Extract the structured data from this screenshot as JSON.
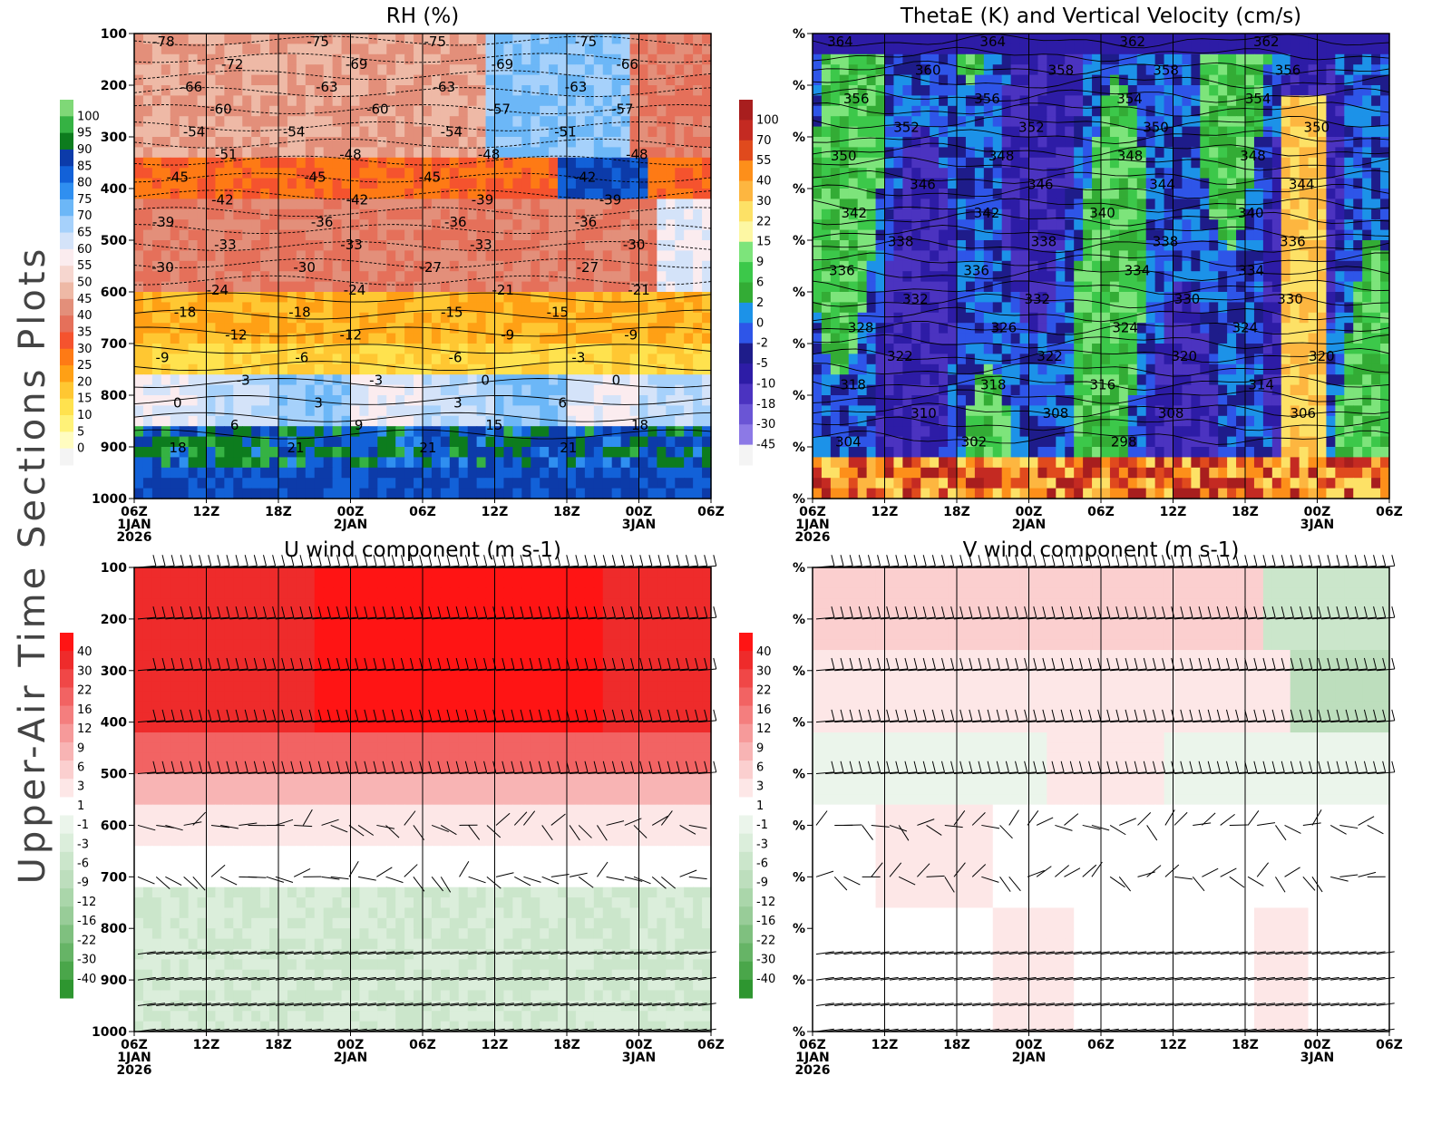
{
  "figure_title": "Upper-Air Time Sections Plots",
  "palettes": {
    "rh": [
      "#f4f4f4",
      "#fffcc0",
      "#fff278",
      "#ffe24e",
      "#ffc732",
      "#ffa015",
      "#fe7a15",
      "#f5532e",
      "#e5705a",
      "#e38f7a",
      "#eeb9a6",
      "#f6d6cf",
      "#fbecef",
      "#d4e3f9",
      "#a6d1fb",
      "#6cb7f7",
      "#2f8ff0",
      "#1261d8",
      "#0c3ba9",
      "#0d7c1e",
      "#35b243",
      "#7fd877"
    ],
    "theta": [
      "#f4f4f4",
      "#8c79e6",
      "#6a55d5",
      "#4b33c0",
      "#2d1ca6",
      "#1e1c8a",
      "#2e55e8",
      "#1c92e8",
      "#33ac35",
      "#3cc84a",
      "#7de47b",
      "#fdf7a3",
      "#fde166",
      "#fdb640",
      "#fd8f1a",
      "#e04a1d",
      "#c42a22",
      "#a81e1e"
    ],
    "uwind": [
      "#2e9630",
      "#4aa64a",
      "#66b466",
      "#7fc07f",
      "#98cc98",
      "#aad6aa",
      "#bddebd",
      "#cbe6cb",
      "#dbeedb",
      "#ebf5eb",
      "#ffffff",
      "#fde7e7",
      "#fbcfcf",
      "#f8b4b4",
      "#f69a9a",
      "#f47e7e",
      "#f26363",
      "#f04747",
      "#ee2b2b",
      "#ff1414"
    ]
  },
  "chart_data": [
    {
      "id": "rh",
      "type": "heatmap",
      "title": "RH (%)",
      "xlabel": "",
      "ylabel": "",
      "y_ticks": [
        "100",
        "200",
        "300",
        "400",
        "500",
        "600",
        "700",
        "800",
        "900",
        "1000"
      ],
      "x_ticks": [
        "06Z",
        "12Z",
        "18Z",
        "00Z",
        "06Z",
        "12Z",
        "18Z",
        "00Z",
        "06Z"
      ],
      "x_date_labels": [
        "1JAN",
        "2JAN",
        "3JAN"
      ],
      "x_year": "2026",
      "ylim": [
        1000,
        100
      ],
      "colorbar": [
        "100",
        "95",
        "90",
        "85",
        "80",
        "75",
        "70",
        "65",
        "60",
        "55",
        "50",
        "45",
        "40",
        "35",
        "30",
        "25",
        "20",
        "15",
        "10",
        "5",
        "0"
      ],
      "contour_labels": [
        "-78",
        "-75",
        "-75",
        "-75",
        "-72",
        "-69",
        "-69",
        "-66",
        "-66",
        "-63",
        "-63",
        "-63",
        "-60",
        "-60",
        "-57",
        "-57",
        "-54",
        "-54",
        "-54",
        "-51",
        "-51",
        "-48",
        "-48",
        "-48",
        "-45",
        "-45",
        "-45",
        "-42",
        "-42",
        "-42",
        "-39",
        "-39",
        "-39",
        "-36",
        "-36",
        "-36",
        "-33",
        "-33",
        "-33",
        "-30",
        "-30",
        "-30",
        "-27",
        "-27",
        "-24",
        "-24",
        "-21",
        "-21",
        "-18",
        "-18",
        "-15",
        "-15",
        "-12",
        "-12",
        "-9",
        "-9",
        "-9",
        "-6",
        "-6",
        "-3",
        "-3",
        "-3",
        "0",
        "0",
        "0",
        "3",
        "3",
        "6",
        "6",
        "9",
        "15",
        "18",
        "18",
        "21",
        "21",
        "21"
      ]
    },
    {
      "id": "theta",
      "type": "heatmap",
      "title": "ThetaE (K) and Vertical Velocity (cm/s)",
      "y_tick_label": "%",
      "x_ticks": [
        "06Z",
        "12Z",
        "18Z",
        "00Z",
        "06Z",
        "12Z",
        "18Z",
        "00Z",
        "06Z"
      ],
      "x_date_labels": [
        "1JAN",
        "2JAN",
        "3JAN"
      ],
      "x_year": "2026",
      "colorbar": [
        "100",
        "70",
        "55",
        "40",
        "30",
        "22",
        "15",
        "9",
        "6",
        "2",
        "0",
        "-2",
        "-5",
        "-10",
        "-18",
        "-30",
        "-45"
      ],
      "contour_labels": [
        "364",
        "364",
        "362",
        "362",
        "360",
        "358",
        "358",
        "356",
        "356",
        "356",
        "354",
        "354",
        "352",
        "352",
        "350",
        "350",
        "350",
        "348",
        "348",
        "348",
        "346",
        "346",
        "344",
        "344",
        "342",
        "342",
        "340",
        "340",
        "338",
        "338",
        "338",
        "336",
        "336",
        "336",
        "334",
        "334",
        "332",
        "332",
        "330",
        "330",
        "328",
        "326",
        "324",
        "324",
        "322",
        "322",
        "320",
        "320",
        "318",
        "318",
        "316",
        "314",
        "310",
        "308",
        "308",
        "306",
        "304",
        "302",
        "298"
      ]
    },
    {
      "id": "uwind",
      "type": "heatmap",
      "title": "U wind component (m s-1)",
      "y_ticks": [
        "100",
        "200",
        "300",
        "400",
        "500",
        "600",
        "700",
        "800",
        "900",
        "1000"
      ],
      "x_ticks": [
        "06Z",
        "12Z",
        "18Z",
        "00Z",
        "06Z",
        "12Z",
        "18Z",
        "00Z",
        "06Z"
      ],
      "x_date_labels": [
        "1JAN",
        "2JAN",
        "3JAN"
      ],
      "x_year": "2026",
      "colorbar": [
        "40",
        "30",
        "22",
        "16",
        "12",
        "9",
        "6",
        "3",
        "1",
        "-1",
        "-3",
        "-6",
        "-9",
        "-12",
        "-16",
        "-22",
        "-30",
        "-40"
      ]
    },
    {
      "id": "vwind",
      "type": "heatmap",
      "title": "V wind component (m s-1)",
      "y_tick_label": "%",
      "x_ticks": [
        "06Z",
        "12Z",
        "18Z",
        "00Z",
        "06Z",
        "12Z",
        "18Z",
        "00Z",
        "06Z"
      ],
      "x_date_labels": [
        "1JAN",
        "2JAN",
        "3JAN"
      ],
      "x_year": "2026",
      "colorbar": [
        "40",
        "30",
        "22",
        "16",
        "12",
        "9",
        "6",
        "3",
        "1",
        "-1",
        "-3",
        "-6",
        "-9",
        "-12",
        "-16",
        "-22",
        "-30",
        "-40"
      ]
    }
  ]
}
